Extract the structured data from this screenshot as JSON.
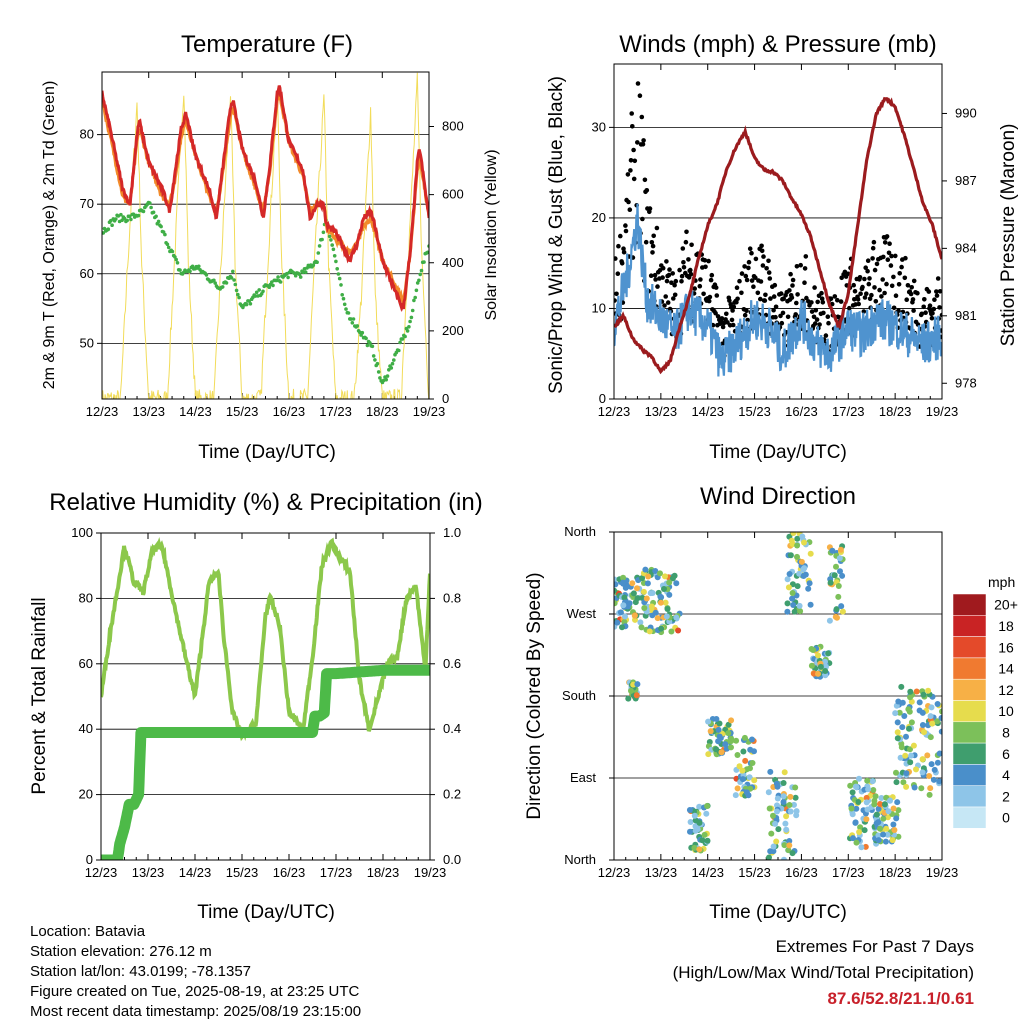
{
  "panels": {
    "temperature": {
      "title": "Temperature (F)",
      "ylabel_left": "2m & 9m T (Red, Orange) & 2m Td (Green)",
      "ylabel_right": "Solar Insolation (Yellow)",
      "xlabel": "Time (Day/UTC)",
      "left_ticks": [
        "50",
        "60",
        "70",
        "80"
      ],
      "right_ticks": [
        "0",
        "200",
        "400",
        "600",
        "800"
      ]
    },
    "winds": {
      "title": "Winds (mph) & Pressure (mb)",
      "ylabel_left": "Sonic/Prop Wind & Gust (Blue, Black)",
      "ylabel_right": "Station Pressure (Maroon)",
      "xlabel": "Time (Day/UTC)",
      "left_ticks": [
        "0",
        "10",
        "20",
        "30"
      ],
      "right_ticks": [
        "978",
        "981",
        "984",
        "987",
        "990"
      ]
    },
    "humidity": {
      "title": "Relative Humidity (%) & Precipitation (in)",
      "ylabel_left": "Percent & Total Rainfall",
      "xlabel": "Time (Day/UTC)",
      "left_ticks": [
        "0",
        "20",
        "40",
        "60",
        "80",
        "100"
      ],
      "right_ticks": [
        "0.0",
        "0.2",
        "0.4",
        "0.6",
        "0.8",
        "1.0"
      ]
    },
    "direction": {
      "title": "Wind Direction",
      "ylabel_left": "Direction (Colored By Speed)",
      "xlabel": "Time (Day/UTC)",
      "dir_ticks": [
        "North",
        "East",
        "South",
        "West",
        "North"
      ],
      "legend_title": "mph",
      "legend_labels": [
        "0",
        "2",
        "4",
        "6",
        "8",
        "10",
        "12",
        "14",
        "16",
        "18",
        "20+"
      ],
      "legend_colors": [
        "#c6e7f5",
        "#8ec5e8",
        "#4a8fca",
        "#3f9e6e",
        "#7cc05a",
        "#e6dc4d",
        "#f7b046",
        "#f07a30",
        "#e44a2a",
        "#c92324",
        "#a01a1e"
      ]
    }
  },
  "x_ticks": [
    "12/23",
    "13/23",
    "14/23",
    "15/23",
    "16/23",
    "17/23",
    "18/23",
    "19/23"
  ],
  "colors": {
    "temp_2m": "#d42828",
    "temp_9m": "#f28a2a",
    "dewpoint": "#3fae46",
    "solar": "#f2dc5a",
    "wind": "#4f93cf",
    "gust": "#000000",
    "pressure": "#9b1b1e",
    "rh": "#8cc84b",
    "precip": "#4dba48",
    "extremes": "#c8202a"
  },
  "info": {
    "location": "Location: Batavia",
    "elevation": "Station elevation: 276.12 m",
    "latlon": "Station lat/lon: 43.0199; -78.1357",
    "created": "Figure created on Tue, 2025-08-19, at 23:25 UTC",
    "recent": "Most recent data timestamp: 2025/08/19 23:15:00"
  },
  "extremes": {
    "title": "Extremes For Past 7 Days",
    "subtitle": "(High/Low/Max Wind/Total Precipitation)",
    "values": "87.6/52.8/21.1/0.61"
  },
  "chart_data": [
    {
      "type": "line",
      "title": "Temperature (F)",
      "xlabel": "Time (Day/UTC)",
      "ylabel": "2m & 9m T (Red, Orange) & 2m Td (Green)",
      "ylabel_right": "Solar Insolation (Yellow)",
      "x_days": [
        0,
        7
      ],
      "ylim": [
        42,
        89
      ],
      "ylim_right": [
        0,
        960
      ],
      "series": [
        {
          "name": "2m T",
          "axis": "left",
          "x": [
            0,
            0.2,
            0.45,
            0.6,
            0.75,
            0.8,
            1.0,
            1.3,
            1.45,
            1.55,
            1.7,
            1.8,
            2.0,
            2.3,
            2.45,
            2.6,
            2.75,
            2.8,
            3.0,
            3.3,
            3.45,
            3.6,
            3.75,
            3.8,
            4.0,
            4.3,
            4.45,
            4.6,
            4.75,
            4.8,
            5.0,
            5.3,
            5.45,
            5.6,
            5.75,
            5.8,
            6.0,
            6.3,
            6.45,
            6.6,
            6.75,
            6.8,
            7.0
          ],
          "y": [
            86,
            80,
            72,
            70,
            80,
            82,
            76,
            72,
            69,
            74,
            81,
            83,
            77,
            72,
            68,
            76,
            84,
            85,
            78,
            73,
            68,
            76,
            86,
            87,
            79,
            75,
            68,
            70,
            70,
            67,
            66,
            62,
            64,
            68,
            69,
            68,
            62,
            57,
            55,
            63,
            76,
            78,
            68
          ]
        },
        {
          "name": "9m T",
          "axis": "left",
          "x": [
            0,
            0.2,
            0.45,
            0.6,
            0.75,
            0.8,
            1.0,
            1.3,
            1.45,
            1.55,
            1.7,
            1.8,
            2.0,
            2.3,
            2.45,
            2.6,
            2.75,
            2.8,
            3.0,
            3.3,
            3.45,
            3.6,
            3.75,
            3.8,
            4.0,
            4.3,
            4.45,
            4.6,
            4.75,
            4.8,
            5.0,
            5.3,
            5.45,
            5.6,
            5.75,
            5.8,
            6.0,
            6.3,
            6.45,
            6.6,
            6.75,
            6.8,
            7.0
          ],
          "y": [
            85,
            79,
            71,
            70,
            79,
            81,
            76,
            71,
            70,
            73,
            80,
            82,
            77,
            71,
            69,
            75,
            83,
            84,
            78,
            72,
            69,
            75,
            85,
            86,
            79,
            74,
            69,
            70,
            70,
            67,
            65,
            63,
            64,
            67,
            68,
            67,
            62,
            58,
            56,
            63,
            75,
            77,
            68
          ]
        },
        {
          "name": "2m Td",
          "axis": "left",
          "x": [
            0,
            0.3,
            0.6,
            0.9,
            1.0,
            1.15,
            1.3,
            1.5,
            1.7,
            2.0,
            2.2,
            2.5,
            2.8,
            3.0,
            3.5,
            4.0,
            4.3,
            4.6,
            4.8,
            5.0,
            5.2,
            5.5,
            5.8,
            6.0,
            6.2,
            6.4,
            6.6,
            6.8,
            7.0
          ],
          "y": [
            66,
            68,
            68,
            69,
            70,
            68,
            66,
            63,
            60,
            61,
            60,
            58,
            60,
            55,
            58,
            60,
            60,
            62,
            68,
            62,
            55,
            52,
            49,
            44,
            47,
            50,
            53,
            60,
            64
          ]
        },
        {
          "name": "Solar",
          "axis": "right",
          "x": [
            0,
            0.4,
            0.55,
            0.75,
            0.85,
            1.0,
            1.4,
            1.55,
            1.75,
            1.85,
            2.0,
            2.4,
            2.55,
            2.75,
            2.85,
            3.0,
            3.4,
            3.55,
            3.75,
            3.85,
            4.0,
            4.4,
            4.55,
            4.75,
            4.85,
            5.0,
            5.4,
            5.55,
            5.75,
            5.85,
            6.0,
            6.4,
            6.55,
            6.75,
            6.85,
            7.0
          ],
          "y": [
            0,
            0,
            400,
            870,
            400,
            0,
            0,
            400,
            920,
            400,
            0,
            0,
            400,
            900,
            400,
            0,
            0,
            400,
            910,
            400,
            0,
            0,
            400,
            880,
            400,
            0,
            0,
            300,
            850,
            300,
            0,
            0,
            400,
            930,
            400,
            0
          ]
        }
      ]
    },
    {
      "type": "line",
      "title": "Winds (mph) & Pressure (mb)",
      "xlabel": "Time (Day/UTC)",
      "ylabel": "Sonic/Prop Wind & Gust (Blue, Black)",
      "ylabel_right": "Station Pressure (Maroon)",
      "x_days": [
        0,
        7
      ],
      "ylim": [
        0,
        37
      ],
      "ylim_right": [
        977.3,
        992.2
      ],
      "series": [
        {
          "name": "Wind",
          "axis": "left",
          "x": [
            0,
            0.3,
            0.5,
            0.7,
            1.0,
            1.3,
            1.6,
            2.0,
            2.3,
            2.6,
            3.0,
            3.3,
            3.6,
            4.0,
            4.3,
            4.6,
            5.0,
            5.3,
            5.6,
            6.0,
            6.3,
            6.6,
            7.0
          ],
          "y": [
            8,
            14,
            20,
            11,
            9,
            7,
            10,
            8,
            4,
            6,
            9,
            8,
            5,
            9,
            6,
            5,
            8,
            7,
            9,
            8,
            7,
            6,
            7
          ]
        },
        {
          "name": "Gust",
          "axis": "left",
          "x": [
            0,
            0.3,
            0.5,
            0.7,
            1.0,
            1.3,
            1.6,
            2.0,
            2.3,
            2.6,
            3.0,
            3.3,
            3.6,
            4.0,
            4.3,
            4.6,
            5.0,
            5.3,
            5.6,
            6.0,
            6.3,
            6.6,
            7.0
          ],
          "y": [
            12,
            20,
            34,
            19,
            14,
            11,
            16,
            13,
            8,
            10,
            15,
            13,
            9,
            14,
            10,
            9,
            13,
            11,
            15,
            14,
            12,
            10,
            11
          ]
        },
        {
          "name": "Pressure",
          "axis": "right",
          "x": [
            0,
            0.2,
            0.4,
            0.6,
            0.8,
            1.0,
            1.2,
            1.4,
            1.6,
            1.8,
            2.0,
            2.2,
            2.4,
            2.6,
            2.8,
            3.0,
            3.2,
            3.4,
            3.6,
            3.8,
            4.0,
            4.2,
            4.4,
            4.6,
            4.8,
            5.0,
            5.2,
            5.4,
            5.6,
            5.8,
            6.0,
            6.2,
            6.4,
            6.6,
            6.8,
            7.0
          ],
          "y": [
            980.5,
            981.0,
            980.0,
            979.5,
            979.2,
            978.5,
            979.0,
            980.5,
            981.8,
            983.5,
            985.0,
            986.0,
            987.5,
            988.5,
            989.2,
            988.0,
            987.5,
            987.4,
            987.0,
            986.2,
            985.5,
            984.5,
            983.0,
            981.5,
            980.5,
            982.0,
            985.0,
            988.0,
            990.0,
            990.7,
            990.3,
            989.0,
            987.5,
            986.0,
            985.0,
            983.5
          ]
        }
      ]
    },
    {
      "type": "line",
      "title": "Relative Humidity (%) & Precipitation (in)",
      "xlabel": "Time (Day/UTC)",
      "ylabel": "Percent & Total Rainfall",
      "x_days": [
        0,
        7
      ],
      "ylim": [
        0,
        100
      ],
      "ylim_right": [
        0.0,
        1.0
      ],
      "series": [
        {
          "name": "Relative Humidity",
          "axis": "left",
          "x": [
            0,
            0.2,
            0.5,
            0.7,
            0.9,
            1.1,
            1.3,
            1.6,
            1.8,
            2.0,
            2.3,
            2.5,
            2.6,
            2.8,
            3.0,
            3.3,
            3.5,
            3.6,
            3.8,
            4.0,
            4.3,
            4.5,
            4.7,
            4.9,
            5.1,
            5.3,
            5.5,
            5.7,
            5.9,
            6.1,
            6.3,
            6.5,
            6.7,
            6.9,
            7.0
          ],
          "y": [
            50,
            70,
            96,
            85,
            82,
            95,
            96,
            75,
            62,
            50,
            85,
            88,
            70,
            45,
            38,
            42,
            75,
            80,
            72,
            45,
            40,
            62,
            90,
            97,
            92,
            88,
            55,
            40,
            50,
            60,
            62,
            80,
            84,
            58,
            88
          ]
        },
        {
          "name": "Precipitation",
          "axis": "right",
          "x": [
            0,
            0.35,
            0.4,
            0.5,
            0.6,
            0.7,
            0.8,
            0.85,
            1.0,
            2.0,
            3.0,
            4.0,
            4.5,
            4.55,
            4.65,
            4.75,
            4.8,
            5.0,
            6.0,
            7.0
          ],
          "y": [
            0.0,
            0.0,
            0.05,
            0.1,
            0.17,
            0.17,
            0.2,
            0.39,
            0.39,
            0.39,
            0.39,
            0.39,
            0.39,
            0.44,
            0.44,
            0.45,
            0.57,
            0.57,
            0.58,
            0.58
          ]
        }
      ]
    },
    {
      "type": "scatter",
      "title": "Wind Direction",
      "xlabel": "Time (Day/UTC)",
      "ylabel": "Direction (Colored By Speed)",
      "x_days": [
        0,
        7
      ],
      "ylim": [
        0,
        360
      ],
      "color_scale": "mph",
      "clusters": [
        {
          "x": [
            0.0,
            0.6
          ],
          "y": [
            255,
            310
          ]
        },
        {
          "x": [
            0.3,
            0.5
          ],
          "y": [
            175,
            195
          ]
        },
        {
          "x": [
            0.6,
            1.4
          ],
          "y": [
            250,
            320
          ]
        },
        {
          "x": [
            1.6,
            2.0
          ],
          "y": [
            10,
            60
          ]
        },
        {
          "x": [
            2.0,
            2.5
          ],
          "y": [
            115,
            155
          ]
        },
        {
          "x": [
            2.6,
            3.0
          ],
          "y": [
            70,
            135
          ]
        },
        {
          "x": [
            3.3,
            3.9
          ],
          "y": [
            0,
            100
          ]
        },
        {
          "x": [
            3.7,
            4.2
          ],
          "y": [
            270,
            360
          ]
        },
        {
          "x": [
            4.2,
            4.6
          ],
          "y": [
            200,
            235
          ]
        },
        {
          "x": [
            4.6,
            4.9
          ],
          "y": [
            250,
            345
          ]
        },
        {
          "x": [
            5.0,
            5.6
          ],
          "y": [
            10,
            90
          ]
        },
        {
          "x": [
            5.6,
            6.1
          ],
          "y": [
            20,
            70
          ]
        },
        {
          "x": [
            6.0,
            7.0
          ],
          "y": [
            70,
            190
          ]
        }
      ]
    }
  ]
}
